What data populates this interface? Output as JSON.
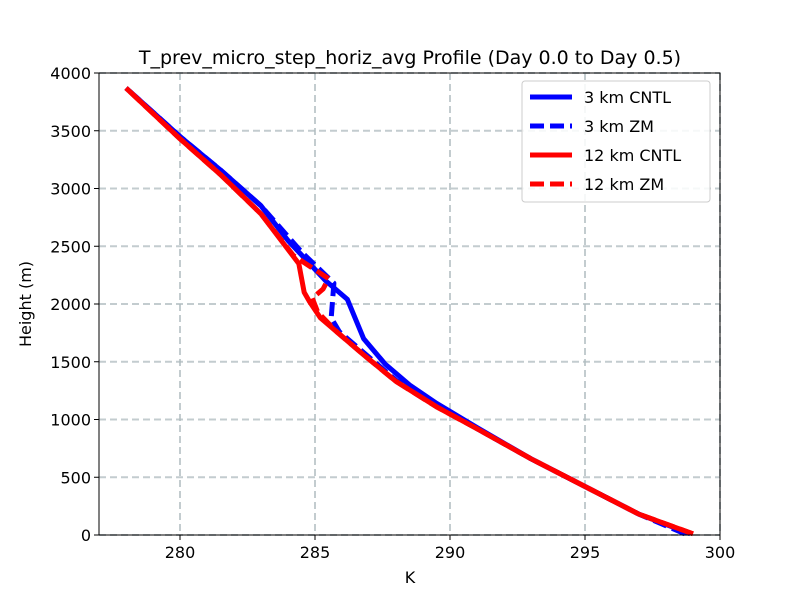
{
  "chart_data": {
    "type": "line",
    "title": "T_prev_micro_step_horiz_avg Profile (Day 0.0 to Day 0.5)",
    "xlabel": "K",
    "ylabel": "Height (m)",
    "xlim": [
      277,
      300
    ],
    "ylim": [
      0,
      4000
    ],
    "xticks": [
      280,
      285,
      290,
      295,
      300
    ],
    "yticks": [
      0,
      500,
      1000,
      1500,
      2000,
      2500,
      3000,
      3500,
      4000
    ],
    "xtick_labels": [
      "280",
      "285",
      "290",
      "295",
      "300"
    ],
    "ytick_labels": [
      "0",
      "500",
      "1000",
      "1500",
      "2000",
      "2500",
      "3000",
      "3500",
      "4000"
    ],
    "grid": true,
    "legend_position": "top-right",
    "series": [
      {
        "name": "3 km CNTL",
        "color": "#0000ff",
        "linestyle": "solid",
        "points": [
          [
            298.9,
            10
          ],
          [
            297.0,
            180
          ],
          [
            295.0,
            420
          ],
          [
            293.0,
            660
          ],
          [
            291.0,
            930
          ],
          [
            289.5,
            1140
          ],
          [
            288.5,
            1300
          ],
          [
            287.6,
            1480
          ],
          [
            286.8,
            1700
          ],
          [
            286.2,
            2040
          ],
          [
            285.4,
            2200
          ],
          [
            284.0,
            2550
          ],
          [
            283.0,
            2850
          ],
          [
            281.5,
            3160
          ],
          [
            280.0,
            3450
          ],
          [
            278.0,
            3870
          ]
        ]
      },
      {
        "name": "3 km ZM",
        "color": "#0000ff",
        "linestyle": "dashed",
        "points": [
          [
            298.7,
            10
          ],
          [
            297.0,
            180
          ],
          [
            295.0,
            420
          ],
          [
            293.0,
            660
          ],
          [
            291.0,
            920
          ],
          [
            289.5,
            1120
          ],
          [
            288.0,
            1340
          ],
          [
            286.8,
            1580
          ],
          [
            285.9,
            1760
          ],
          [
            285.6,
            1880
          ],
          [
            285.7,
            2180
          ],
          [
            284.5,
            2450
          ],
          [
            283.0,
            2850
          ],
          [
            281.5,
            3160
          ],
          [
            280.0,
            3450
          ],
          [
            278.0,
            3870
          ]
        ]
      },
      {
        "name": "12 km CNTL",
        "color": "#ff0000",
        "linestyle": "solid",
        "points": [
          [
            299.0,
            10
          ],
          [
            297.0,
            180
          ],
          [
            295.0,
            420
          ],
          [
            293.0,
            660
          ],
          [
            291.0,
            920
          ],
          [
            289.5,
            1110
          ],
          [
            288.0,
            1330
          ],
          [
            286.8,
            1560
          ],
          [
            285.8,
            1760
          ],
          [
            285.2,
            1880
          ],
          [
            284.8,
            2020
          ],
          [
            284.6,
            2100
          ],
          [
            284.4,
            2350
          ],
          [
            283.0,
            2780
          ],
          [
            281.5,
            3120
          ],
          [
            280.0,
            3430
          ],
          [
            278.0,
            3870
          ]
        ]
      },
      {
        "name": "12 km ZM",
        "color": "#ff0000",
        "linestyle": "dashed",
        "points": [
          [
            299.0,
            10
          ],
          [
            297.0,
            180
          ],
          [
            295.0,
            420
          ],
          [
            293.0,
            660
          ],
          [
            291.0,
            920
          ],
          [
            289.5,
            1110
          ],
          [
            288.0,
            1330
          ],
          [
            286.8,
            1560
          ],
          [
            285.8,
            1760
          ],
          [
            285.1,
            1930
          ],
          [
            284.9,
            2050
          ],
          [
            285.3,
            2130
          ],
          [
            285.5,
            2220
          ],
          [
            284.2,
            2420
          ],
          [
            283.0,
            2780
          ],
          [
            281.5,
            3120
          ],
          [
            280.0,
            3430
          ],
          [
            278.0,
            3870
          ]
        ]
      }
    ]
  }
}
